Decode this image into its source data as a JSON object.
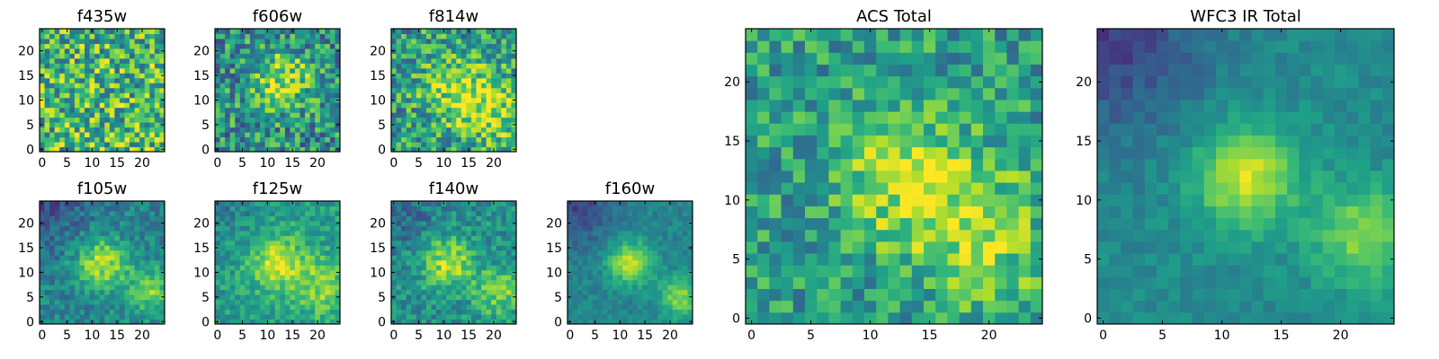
{
  "chart_data": [
    {
      "type": "heatmap",
      "title": "f435w",
      "xticks": [
        0,
        5,
        10,
        15,
        20
      ],
      "yticks": [
        0,
        5,
        10,
        15,
        20
      ],
      "xlim": [
        -0.5,
        24.5
      ],
      "ylim": [
        -0.5,
        24.5
      ],
      "grid_size": 25,
      "colormap": "viridis",
      "grid": false,
      "blob_centers": []
    },
    {
      "type": "heatmap",
      "title": "f606w",
      "xticks": [
        0,
        5,
        10,
        15,
        20
      ],
      "yticks": [
        0,
        5,
        10,
        15,
        20
      ],
      "xlim": [
        -0.5,
        24.5
      ],
      "ylim": [
        -0.5,
        24.5
      ],
      "grid_size": 25,
      "colormap": "viridis",
      "grid": false,
      "blob_centers": [
        [
          13,
          14
        ]
      ]
    },
    {
      "type": "heatmap",
      "title": "f814w",
      "xticks": [
        0,
        5,
        10,
        15,
        20
      ],
      "yticks": [
        0,
        5,
        10,
        15,
        20
      ],
      "xlim": [
        -0.5,
        24.5
      ],
      "ylim": [
        -0.5,
        24.5
      ],
      "grid_size": 25,
      "colormap": "viridis",
      "grid": false,
      "blob_centers": [
        [
          13,
          12
        ],
        [
          21,
          7
        ]
      ]
    },
    {
      "type": "heatmap",
      "title": "f105w",
      "xticks": [
        0,
        5,
        10,
        15,
        20
      ],
      "yticks": [
        0,
        5,
        10,
        15,
        20
      ],
      "xlim": [
        -0.5,
        24.5
      ],
      "ylim": [
        -0.5,
        24.5
      ],
      "grid_size": 25,
      "colormap": "viridis",
      "grid": false,
      "blob_centers": [
        [
          12,
          12
        ],
        [
          22,
          6
        ]
      ]
    },
    {
      "type": "heatmap",
      "title": "f125w",
      "xticks": [
        0,
        5,
        10,
        15,
        20
      ],
      "yticks": [
        0,
        5,
        10,
        15,
        20
      ],
      "xlim": [
        -0.5,
        24.5
      ],
      "ylim": [
        -0.5,
        24.5
      ],
      "grid_size": 25,
      "colormap": "viridis",
      "grid": false,
      "blob_centers": [
        [
          12,
          12
        ],
        [
          21,
          7
        ]
      ]
    },
    {
      "type": "heatmap",
      "title": "f140w",
      "xticks": [
        0,
        5,
        10,
        15,
        20
      ],
      "yticks": [
        0,
        5,
        10,
        15,
        20
      ],
      "xlim": [
        -0.5,
        24.5
      ],
      "ylim": [
        -0.5,
        24.5
      ],
      "grid_size": 25,
      "colormap": "viridis",
      "grid": false,
      "blob_centers": [
        [
          11,
          12
        ],
        [
          21,
          6
        ]
      ]
    },
    {
      "type": "heatmap",
      "title": "f160w",
      "xticks": [
        0,
        5,
        10,
        15,
        20
      ],
      "yticks": [
        0,
        5,
        10,
        15,
        20
      ],
      "xlim": [
        -0.5,
        24.5
      ],
      "ylim": [
        -0.5,
        24.5
      ],
      "grid_size": 25,
      "colormap": "viridis",
      "grid": false,
      "blob_centers": [
        [
          12,
          12
        ],
        [
          22,
          5
        ]
      ]
    },
    {
      "type": "heatmap",
      "title": "ACS Total",
      "xticks": [
        0,
        5,
        10,
        15,
        20
      ],
      "yticks": [
        0,
        5,
        10,
        15,
        20
      ],
      "xlim": [
        -0.5,
        24.5
      ],
      "ylim": [
        -0.5,
        24.5
      ],
      "grid_size": 25,
      "colormap": "viridis",
      "grid": false,
      "blob_centers": [
        [
          13,
          12
        ],
        [
          20,
          7
        ]
      ]
    },
    {
      "type": "heatmap",
      "title": "WFC3 IR Total",
      "xticks": [
        0,
        5,
        10,
        15,
        20
      ],
      "yticks": [
        0,
        5,
        10,
        15,
        20
      ],
      "xlim": [
        -0.5,
        24.5
      ],
      "ylim": [
        -0.5,
        24.5
      ],
      "grid_size": 25,
      "colormap": "viridis",
      "grid": false,
      "blob_centers": [
        [
          12,
          12
        ],
        [
          22,
          7
        ]
      ]
    }
  ]
}
